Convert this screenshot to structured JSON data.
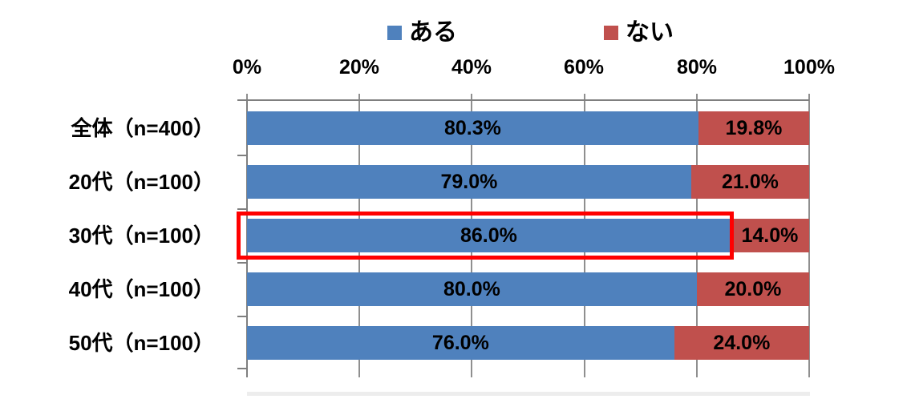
{
  "chart_data": {
    "type": "bar",
    "variant": "horizontal-stacked-100pct",
    "title": "",
    "categories": [
      "全体（n=400）",
      "20代（n=100）",
      "30代（n=100）",
      "40代（n=100）",
      "50代（n=100）"
    ],
    "series": [
      {
        "name": "ある",
        "color": "#4F81BD",
        "values": [
          80.3,
          79.0,
          86.0,
          80.0,
          76.0
        ],
        "labels": [
          "80.3%",
          "79.0%",
          "86.0%",
          "80.0%",
          "76.0%"
        ]
      },
      {
        "name": "ない",
        "color": "#C0504D",
        "values": [
          19.8,
          21.0,
          14.0,
          20.0,
          24.0
        ],
        "labels": [
          "19.8%",
          "21.0%",
          "14.0%",
          "20.0%",
          "24.0%"
        ]
      }
    ],
    "x_axis": {
      "min": 0,
      "max": 100,
      "ticks": [
        "0%",
        "20%",
        "40%",
        "60%",
        "80%",
        "100%"
      ],
      "grid": true,
      "grid_color": "#8f8f8f",
      "axis_color": "#7f7f7f"
    },
    "legend": {
      "position": "top",
      "entries": [
        "ある",
        "ない"
      ]
    },
    "annotation": {
      "type": "highlight-outline-box",
      "color": "#FF0000",
      "target_category": "30代（n=100）",
      "target_series": "ある",
      "target_value_label": "86.0%"
    },
    "background": "#FFFFFF",
    "text_color": "#000000"
  }
}
